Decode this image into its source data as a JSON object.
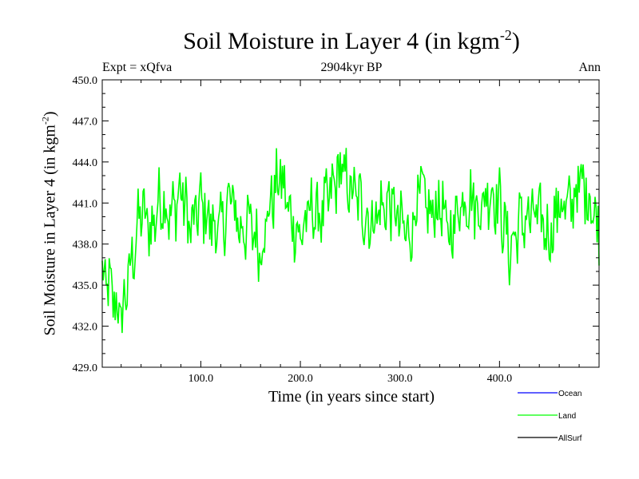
{
  "chart_data": {
    "type": "line",
    "title": "Soil Moisture in Layer 4 (in kgm",
    "title_sup": "-2",
    "title_close": ")",
    "subtitle": "2904kyr BP",
    "top_left_label": "Expt = xQfva",
    "top_right_label": "Ann",
    "xlabel": "Time (in years since start)",
    "ylabel": "Soil Moisture in Layer 4 (in kgm",
    "ylabel_sup": "-2",
    "ylabel_close": ")",
    "xlim": [
      1,
      500
    ],
    "ylim": [
      429.0,
      450.0
    ],
    "x_ticks": [
      100,
      200,
      300,
      400
    ],
    "x_tick_labels": [
      "100.0",
      "200.0",
      "300.0",
      "400.0"
    ],
    "y_ticks": [
      429,
      432,
      435,
      438,
      441,
      444,
      447,
      450
    ],
    "y_tick_labels": [
      "429.0",
      "432.0",
      "435.0",
      "438.0",
      "441.0",
      "444.0",
      "447.0",
      "450.0"
    ],
    "series": [
      {
        "name": "Ocean",
        "color": "#0000ff",
        "values": []
      },
      {
        "name": "Land",
        "color": "#00ff00",
        "x": [
          1,
          10,
          20,
          30,
          40,
          50,
          60,
          70,
          80,
          90,
          100,
          110,
          120,
          130,
          140,
          150,
          160,
          170,
          180,
          190,
          200,
          210,
          220,
          230,
          240,
          250,
          260,
          270,
          280,
          290,
          300,
          310,
          320,
          330,
          340,
          350,
          360,
          370,
          380,
          390,
          400,
          410,
          420,
          430,
          440,
          450,
          460,
          470,
          480,
          490,
          500
        ],
        "values": [
          435.5,
          434.5,
          432.5,
          436.5,
          440.5,
          439.0,
          441.5,
          440.0,
          442.0,
          439.0,
          441.0,
          439.5,
          439.0,
          441.5,
          439.0,
          439.5,
          437.5,
          441.0,
          443.0,
          440.0,
          438.5,
          440.5,
          440.0,
          441.5,
          443.5,
          442.0,
          441.0,
          439.5,
          440.5,
          441.0,
          439.5,
          438.5,
          442.0,
          440.0,
          441.0,
          438.5,
          441.0,
          441.5,
          440.5,
          442.0,
          441.0,
          437.5,
          439.5,
          440.0,
          440.0,
          438.5,
          441.0,
          440.5,
          442.5,
          441.5,
          439.0
        ]
      },
      {
        "name": "AllSurf",
        "color": "#000000",
        "values": []
      }
    ]
  }
}
